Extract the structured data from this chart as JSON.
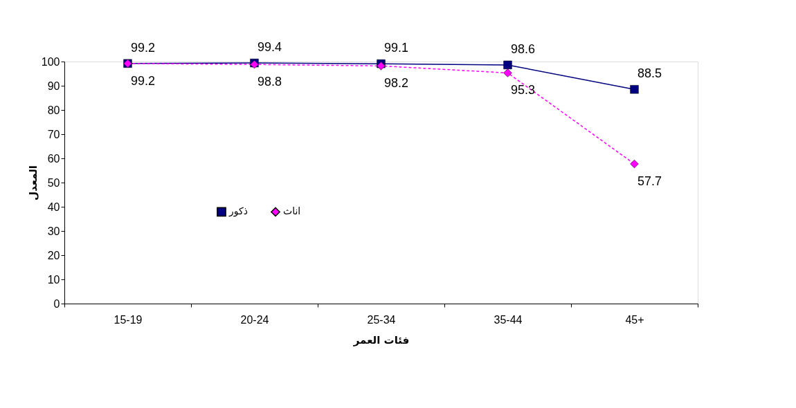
{
  "chart_data": {
    "type": "line",
    "xlabel": "فئات العمر",
    "ylabel": "المعدل",
    "categories": [
      "15-19",
      "20-24",
      "25-34",
      "35-44",
      "45+"
    ],
    "series": [
      {
        "name": "ذكور",
        "color": "#000080",
        "marker": "square",
        "line_style": "solid",
        "values": [
          99.2,
          99.4,
          99.1,
          98.6,
          88.5
        ]
      },
      {
        "name": "اناث",
        "color": "#ff00ff",
        "marker": "diamond",
        "line_style": "dashed",
        "values": [
          99.2,
          98.8,
          98.2,
          95.3,
          57.7
        ]
      }
    ],
    "ylim": [
      0,
      100
    ],
    "yticks": [
      0,
      10,
      20,
      30,
      40,
      50,
      60,
      70,
      80,
      90,
      100
    ],
    "grid": false,
    "legend": "left",
    "data_labels": true
  }
}
